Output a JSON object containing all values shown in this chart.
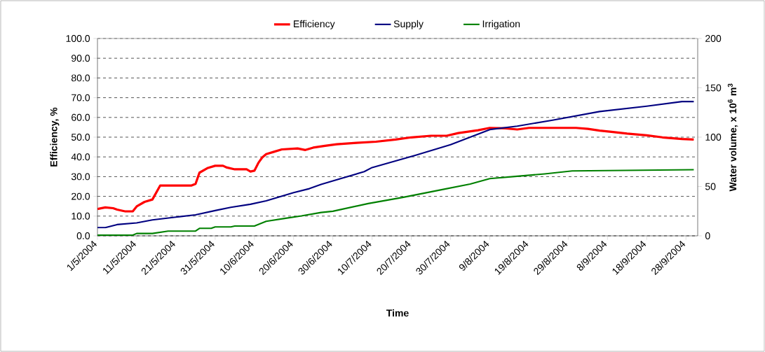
{
  "chart_data": {
    "type": "line",
    "xlabel": "Time",
    "ylabel": "Efficiency, %",
    "y2label": "Water volume, x 10$^{6}$ m$^{3}$",
    "xlim": [
      "2004-05-01",
      "2004-10-01"
    ],
    "xticks": [
      {
        "value": "2004-05-01",
        "label": "1/5/2004"
      },
      {
        "value": "2004-05-11",
        "label": "11/5/2004"
      },
      {
        "value": "2004-05-21",
        "label": "21/5/2004"
      },
      {
        "value": "2004-05-31",
        "label": "31/5/2004"
      },
      {
        "value": "2004-06-10",
        "label": "10/6/2004"
      },
      {
        "value": "2004-06-20",
        "label": "20/6/2004"
      },
      {
        "value": "2004-06-30",
        "label": "30/6/2004"
      },
      {
        "value": "2004-07-10",
        "label": "10/7/2004"
      },
      {
        "value": "2004-07-20",
        "label": "20/7/2004"
      },
      {
        "value": "2004-07-30",
        "label": "30/7/2004"
      },
      {
        "value": "2004-08-09",
        "label": "9/8/2004"
      },
      {
        "value": "2004-08-19",
        "label": "19/8/2004"
      },
      {
        "value": "2004-08-29",
        "label": "29/8/2004"
      },
      {
        "value": "2004-09-08",
        "label": "8/9/2004"
      },
      {
        "value": "2004-09-18",
        "label": "18/9/2004"
      },
      {
        "value": "2004-09-28",
        "label": "28/9/2004"
      }
    ],
    "ylim": [
      0,
      100
    ],
    "yticks": [
      {
        "value": 0,
        "label": "0.0"
      },
      {
        "value": 10,
        "label": "10.0"
      },
      {
        "value": 20,
        "label": "20.0"
      },
      {
        "value": 30,
        "label": "30.0"
      },
      {
        "value": 40,
        "label": "40.0"
      },
      {
        "value": 50,
        "label": "50.0"
      },
      {
        "value": 60,
        "label": "60.0"
      },
      {
        "value": 70,
        "label": "70.0"
      },
      {
        "value": 80,
        "label": "80.0"
      },
      {
        "value": 90,
        "label": "90.0"
      },
      {
        "value": 100,
        "label": "100.0"
      }
    ],
    "y2lim": [
      0,
      200
    ],
    "y2ticks": [
      0,
      50,
      100,
      150,
      200
    ],
    "grid": "y",
    "legend": "top",
    "series": [
      {
        "name": "Efficiency",
        "color": "#ff0000",
        "x": [
          "2004-05-01",
          "2004-05-03",
          "2004-05-05",
          "2004-05-06",
          "2004-05-08",
          "2004-05-10",
          "2004-05-11",
          "2004-05-13",
          "2004-05-15",
          "2004-05-17",
          "2004-05-25",
          "2004-05-26",
          "2004-05-27",
          "2004-05-29",
          "2004-05-31",
          "2004-06-02",
          "2004-06-03",
          "2004-06-05",
          "2004-06-08",
          "2004-06-09",
          "2004-06-10",
          "2004-06-11",
          "2004-06-12",
          "2004-06-13",
          "2004-06-15",
          "2004-06-17",
          "2004-06-21",
          "2004-06-23",
          "2004-06-25",
          "2004-06-28",
          "2004-07-01",
          "2004-07-06",
          "2004-07-11",
          "2004-07-16",
          "2004-07-20",
          "2004-07-25",
          "2004-07-29",
          "2004-08-01",
          "2004-08-06",
          "2004-08-09",
          "2004-08-13",
          "2004-08-16",
          "2004-08-19",
          "2004-08-31",
          "2004-09-03",
          "2004-09-06",
          "2004-09-09",
          "2004-09-13",
          "2004-09-18",
          "2004-09-22",
          "2004-09-27",
          "2004-09-30"
        ],
        "values": [
          13.6,
          14.4,
          14.0,
          13.3,
          12.4,
          12.4,
          14.9,
          17.2,
          18.4,
          25.5,
          25.5,
          26.3,
          32.0,
          34.3,
          35.5,
          35.5,
          34.6,
          33.7,
          33.7,
          32.6,
          33.0,
          36.9,
          39.7,
          41.4,
          42.6,
          43.8,
          44.3,
          43.5,
          44.7,
          45.6,
          46.4,
          47.1,
          47.7,
          48.8,
          49.9,
          50.7,
          50.7,
          52.1,
          53.5,
          54.7,
          54.5,
          53.9,
          54.7,
          54.7,
          54.2,
          53.3,
          52.7,
          51.8,
          50.9,
          49.9,
          49.1,
          48.8
        ]
      },
      {
        "name": "Supply",
        "color": "#000080",
        "axis": "y2",
        "x": [
          "2004-05-01",
          "2004-05-03",
          "2004-05-06",
          "2004-05-11",
          "2004-05-15",
          "2004-05-21",
          "2004-05-26",
          "2004-05-31",
          "2004-06-04",
          "2004-06-09",
          "2004-06-13",
          "2004-06-20",
          "2004-06-24",
          "2004-06-27",
          "2004-07-08",
          "2004-07-10",
          "2004-07-21",
          "2004-07-30",
          "2004-08-09",
          "2004-08-16",
          "2004-08-25",
          "2004-09-06",
          "2004-09-18",
          "2004-09-27",
          "2004-09-30"
        ],
        "values": [
          8.3,
          8.3,
          11.4,
          13.1,
          16.1,
          19.0,
          21.3,
          25.6,
          28.9,
          32.0,
          35.5,
          43.8,
          47.8,
          52.1,
          65.1,
          69.2,
          81.6,
          92.3,
          107.7,
          111.2,
          117.2,
          126.0,
          131.4,
          136.1,
          136.1
        ]
      },
      {
        "name": "Irrigation",
        "color": "#008000",
        "axis": "y2",
        "x": [
          "2004-05-01",
          "2004-05-10",
          "2004-05-11",
          "2004-05-15",
          "2004-05-19",
          "2004-05-26",
          "2004-05-27",
          "2004-05-30",
          "2004-05-31",
          "2004-06-04",
          "2004-06-05",
          "2004-06-10",
          "2004-06-13",
          "2004-06-18",
          "2004-06-22",
          "2004-06-27",
          "2004-06-30",
          "2004-07-09",
          "2004-07-18",
          "2004-07-27",
          "2004-08-04",
          "2004-08-09",
          "2004-08-16",
          "2004-08-23",
          "2004-08-30",
          "2004-09-30"
        ],
        "values": [
          0.7,
          0.7,
          2.4,
          2.4,
          4.8,
          4.8,
          7.6,
          7.6,
          9.0,
          9.0,
          9.9,
          9.9,
          14.7,
          17.8,
          20.2,
          23.7,
          24.9,
          32.7,
          39.1,
          46.2,
          52.5,
          58.0,
          60.4,
          62.8,
          65.8,
          67.0
        ]
      }
    ]
  }
}
